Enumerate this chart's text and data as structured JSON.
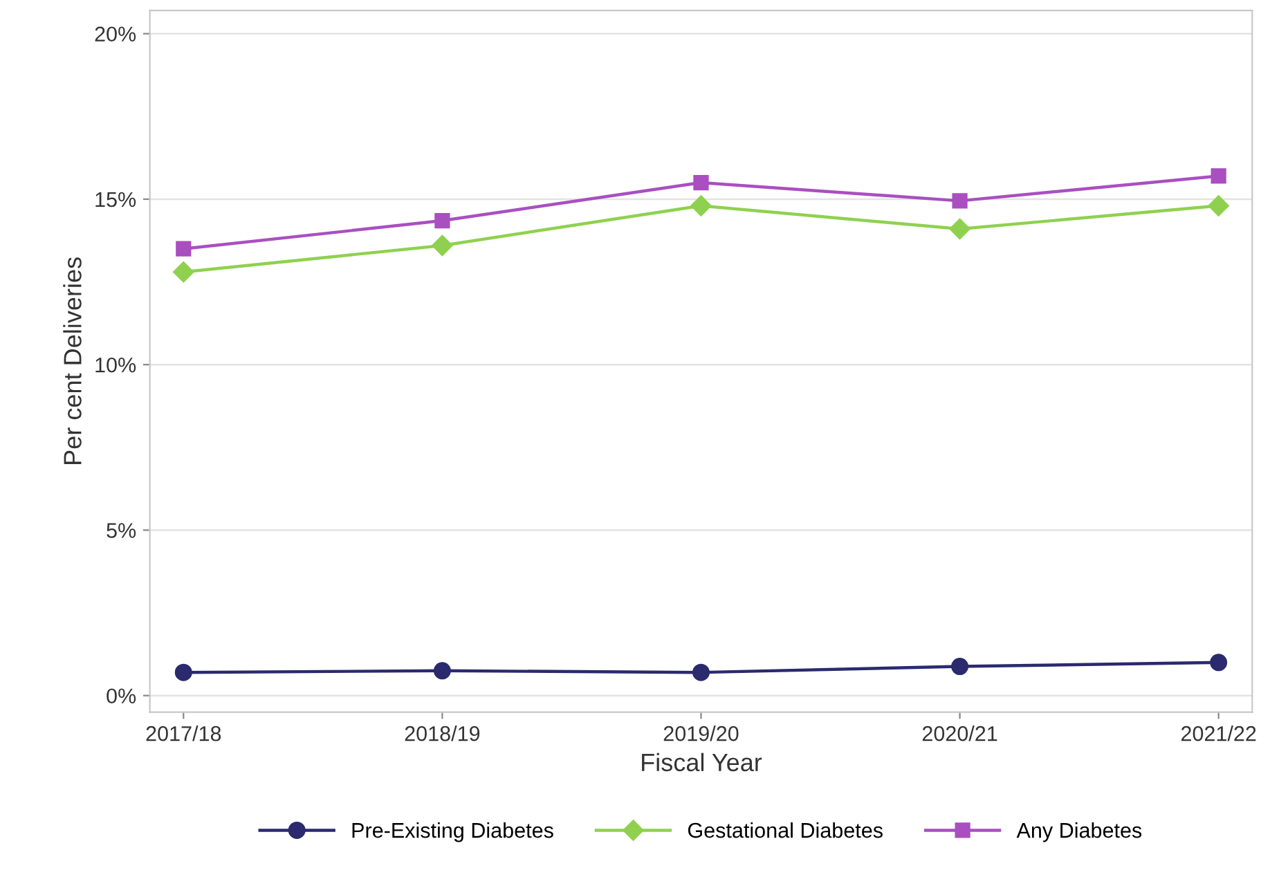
{
  "chart_data": {
    "type": "line",
    "xlabel": "Fiscal Year",
    "ylabel": "Per cent Deliveries",
    "categories": [
      "2017/18",
      "2018/19",
      "2019/20",
      "2020/21",
      "2021/22"
    ],
    "series": [
      {
        "name": "Pre-Existing Diabetes",
        "color": "#2b2a6e",
        "marker": "circle",
        "values": [
          0.7,
          0.75,
          0.7,
          0.88,
          1.0
        ]
      },
      {
        "name": "Gestational Diabetes",
        "color": "#8fd14f",
        "marker": "diamond",
        "values": [
          12.8,
          13.6,
          14.8,
          14.1,
          14.8
        ]
      },
      {
        "name": "Any Diabetes",
        "color": "#a94fc0",
        "marker": "square",
        "values": [
          13.5,
          14.35,
          15.5,
          14.95,
          15.7
        ]
      }
    ],
    "ylim": [
      -0.5,
      20.7
    ],
    "yticks": [
      {
        "value": 0,
        "label": "0%"
      },
      {
        "value": 5,
        "label": "5%"
      },
      {
        "value": 10,
        "label": "10%"
      },
      {
        "value": 15,
        "label": "15%"
      },
      {
        "value": 20,
        "label": "20%"
      }
    ],
    "grid": "y",
    "legend": "bottom",
    "line_style": "solid"
  }
}
